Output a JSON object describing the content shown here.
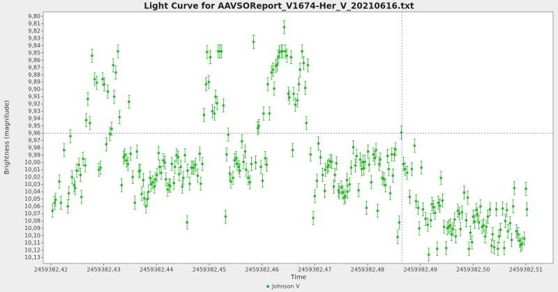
{
  "chart_data": {
    "type": "scatter",
    "title": "Light Curve for AAVSOReport_V1674-Her_V_20210616.txt",
    "x_label": "Time",
    "y_label": "Brightness (magnitude)",
    "xlim": [
      2459382.41855,
      2459382.51516
    ],
    "ylim": [
      10.138,
      9.794
    ],
    "xticks": [
      {
        "value": 2459382.42,
        "label": "2459382,42"
      },
      {
        "value": 2459382.43,
        "label": "2459382,43"
      },
      {
        "value": 2459382.44,
        "label": "2459382,44"
      },
      {
        "value": 2459382.45,
        "label": "2459382,45"
      },
      {
        "value": 2459382.46,
        "label": "2459382,46"
      },
      {
        "value": 2459382.47,
        "label": "2459382,47"
      },
      {
        "value": 2459382.48,
        "label": "2459382,48"
      },
      {
        "value": 2459382.49,
        "label": "2459382,49"
      },
      {
        "value": 2459382.5,
        "label": "2459382,50"
      },
      {
        "value": 2459382.51,
        "label": "2459382,51"
      }
    ],
    "yticks": [
      {
        "value": 9.8,
        "label": "9,80"
      },
      {
        "value": 9.81,
        "label": "9,81"
      },
      {
        "value": 9.82,
        "label": "9,82"
      },
      {
        "value": 9.83,
        "label": "9,83"
      },
      {
        "value": 9.84,
        "label": "9,84"
      },
      {
        "value": 9.85,
        "label": "9,85"
      },
      {
        "value": 9.86,
        "label": "9,86"
      },
      {
        "value": 9.87,
        "label": "9,87"
      },
      {
        "value": 9.88,
        "label": "9,88"
      },
      {
        "value": 9.89,
        "label": "9,89"
      },
      {
        "value": 9.9,
        "label": "9,90"
      },
      {
        "value": 9.91,
        "label": "9,91"
      },
      {
        "value": 9.92,
        "label": "9,92"
      },
      {
        "value": 9.93,
        "label": "9,93"
      },
      {
        "value": 9.94,
        "label": "9,94"
      },
      {
        "value": 9.95,
        "label": "9,95"
      },
      {
        "value": 9.96,
        "label": "9,96"
      },
      {
        "value": 9.97,
        "label": "9,97"
      },
      {
        "value": 9.98,
        "label": "9,98"
      },
      {
        "value": 9.99,
        "label": "9,99"
      },
      {
        "value": 10.0,
        "label": "10,00"
      },
      {
        "value": 10.01,
        "label": "10,01"
      },
      {
        "value": 10.02,
        "label": "10,02"
      },
      {
        "value": 10.03,
        "label": "10,03"
      },
      {
        "value": 10.04,
        "label": "10,04"
      },
      {
        "value": 10.05,
        "label": "10,05"
      },
      {
        "value": 10.06,
        "label": "10,06"
      },
      {
        "value": 10.07,
        "label": "10,07"
      },
      {
        "value": 10.08,
        "label": "10,08"
      },
      {
        "value": 10.09,
        "label": "10,09"
      },
      {
        "value": 10.1,
        "label": "10,10"
      },
      {
        "value": 10.11,
        "label": "10,11"
      },
      {
        "value": 10.12,
        "label": "10,12"
      },
      {
        "value": 10.13,
        "label": "10,13"
      }
    ],
    "crosshair": {
      "x": 2459382.4865,
      "y": 9.96,
      "color": "#8080ff"
    },
    "legend": "bottom",
    "x": [
      2459382.4203,
      2459382.4207,
      2459382.4209,
      2459382.4216,
      2459382.4219,
      2459382.4225,
      2459382.4232,
      2459382.4234,
      2459382.4237,
      2459382.424,
      2459382.4244,
      2459382.4246,
      2459382.4249,
      2459382.4253,
      2459382.4256,
      2459382.4258,
      2459382.4261,
      2459382.4265,
      2459382.4267,
      2459382.427,
      2459382.4274,
      2459382.4278,
      2459382.4283,
      2459382.4287,
      2459382.4291,
      2459382.4294,
      2459382.4298,
      2459382.4301,
      2459382.4305,
      2459382.4308,
      2459382.4312,
      2459382.4315,
      2459382.4318,
      2459382.432,
      2459382.4323,
      2459382.4327,
      2459382.433,
      2459382.4334,
      2459382.4338,
      2459382.434,
      2459382.4343,
      2459382.4346,
      2459382.4348,
      2459382.4351,
      2459382.4355,
      2459382.4359,
      2459382.4363,
      2459382.4367,
      2459382.4369,
      2459382.4372,
      2459382.4375,
      2459382.4377,
      2459382.438,
      2459382.4383,
      2459382.4385,
      2459382.4388,
      2459382.439,
      2459382.4393,
      2459382.4396,
      2459382.4398,
      2459382.4401,
      2459382.4404,
      2459382.4406,
      2459382.4409,
      2459382.4413,
      2459382.4416,
      2459382.4418,
      2459382.4421,
      2459382.4424,
      2459382.4426,
      2459382.4429,
      2459382.4433,
      2459382.4435,
      2459382.4438,
      2459382.4441,
      2459382.4443,
      2459382.4446,
      2459382.4449,
      2459382.4451,
      2459382.4454,
      2459382.4458,
      2459382.4459,
      2459382.4463,
      2459382.4466,
      2459382.4469,
      2459382.4471,
      2459382.4474,
      2459382.4478,
      2459382.4482,
      2459382.4484,
      2459382.4487,
      2459382.449,
      2459382.4494,
      2459382.4496,
      2459382.4499,
      2459382.4502,
      2459382.4506,
      2459382.451,
      2459382.4512,
      2459382.4515,
      2459382.4517,
      2459382.452,
      2459382.4523,
      2459382.4527,
      2459382.4531,
      2459382.4533,
      2459382.4536,
      2459382.4539,
      2459382.4541,
      2459382.4545,
      2459382.4548,
      2459382.4551,
      2459382.4553,
      2459382.4556,
      2459382.4558,
      2459382.4562,
      2459382.4565,
      2459382.4568,
      2459382.457,
      2459382.4574,
      2459382.4577,
      2459382.458,
      2459382.4584,
      2459382.4588,
      2459382.4592,
      2459382.4594,
      2459382.4598,
      2459382.4601,
      2459382.4603,
      2459382.4606,
      2459382.4609,
      2459382.4611,
      2459382.4614,
      2459382.4618,
      2459382.4621,
      2459382.4623,
      2459382.4626,
      2459382.4629,
      2459382.4631,
      2459382.4633,
      2459382.4637,
      2459382.4639,
      2459382.4642,
      2459382.4644,
      2459382.4647,
      2459382.465,
      2459382.4652,
      2459382.4655,
      2459382.4658,
      2459382.466,
      2459382.4663,
      2459382.4667,
      2459382.467,
      2459382.4672,
      2459382.4676,
      2459382.4679,
      2459382.4682,
      2459382.4684,
      2459382.4687,
      2459382.4692,
      2459382.4697,
      2459382.47,
      2459382.4704,
      2459382.4707,
      2459382.4711,
      2459382.4715,
      2459382.4719,
      2459382.472,
      2459382.4724,
      2459382.4726,
      2459382.4729,
      2459382.4732,
      2459382.4736,
      2459382.4738,
      2459382.4741,
      2459382.4745,
      2459382.4746,
      2459382.475,
      2459382.4753,
      2459382.4756,
      2459382.4758,
      2459382.4761,
      2459382.4762,
      2459382.4766,
      2459382.4769,
      2459382.4773,
      2459382.4777,
      2459382.4779,
      2459382.4783,
      2459382.4786,
      2459382.4789,
      2459382.4791,
      2459382.4793,
      2459382.4795,
      2459382.4798,
      2459382.4801,
      2459382.4803,
      2459382.4807,
      2459382.4811,
      2459382.4814,
      2459382.4816,
      2459382.4819,
      2459382.4822,
      2459382.4824,
      2459382.4828,
      2459382.4831,
      2459382.4834,
      2459382.4838,
      2459382.484,
      2459382.4843,
      2459382.4846,
      2459382.4848,
      2459382.4851,
      2459382.4853,
      2459382.4857,
      2459382.486,
      2459382.4864,
      2459382.4868,
      2459382.4871,
      2459382.4875,
      2459382.488,
      2459382.4884,
      2459382.4889,
      2459382.4892,
      2459382.4896,
      2459382.4898,
      2459382.4902,
      2459382.4905,
      2459382.491,
      2459382.4914,
      2459382.4916,
      2459382.492,
      2459382.4922,
      2459382.4925,
      2459382.4928,
      2459382.4932,
      2459382.4934,
      2459382.4937,
      2459382.4939,
      2459382.4942,
      2459382.4945,
      2459382.4949,
      2459382.4951,
      2459382.4954,
      2459382.4957,
      2459382.4959,
      2459382.4962,
      2459382.4965,
      2459382.4967,
      2459382.4971,
      2459382.4974,
      2459382.4976,
      2459382.4979,
      2459382.4983,
      2459382.4987,
      2459382.499,
      2459382.4992,
      2459382.4995,
      2459382.4998,
      2459382.5,
      2459382.5003,
      2459382.5006,
      2459382.5008,
      2459382.5011,
      2459382.5014,
      2459382.5017,
      2459382.502,
      2459382.5023,
      2459382.5025,
      2459382.5028,
      2459382.5032,
      2459382.5035,
      2459382.5037,
      2459382.504,
      2459382.5044,
      2459382.5047,
      2459382.5049,
      2459382.5052,
      2459382.5056,
      2459382.5059,
      2459382.5061,
      2459382.5064,
      2459382.5066,
      2459382.507,
      2459382.5073,
      2459382.5076,
      2459382.5078,
      2459382.5082,
      2459382.5085,
      2459382.5088,
      2459382.509,
      2459382.5093,
      2459382.5097,
      2459382.51,
      2459382.5102
    ],
    "series": [
      {
        "name": "Johnson V",
        "color": "#22bb22",
        "error": 0.009,
        "values": [
          10.066,
          10.055,
          10.051,
          10.026,
          10.055,
          9.983,
          10.06,
          10.042,
          9.964,
          10.02,
          10.031,
          10.035,
          10.011,
          10.003,
          10.017,
          10.047,
          9.995,
          10.004,
          9.942,
          9.913,
          9.946,
          9.854,
          9.886,
          9.891,
          10.01,
          10.007,
          9.886,
          9.893,
          9.975,
          9.903,
          9.961,
          9.954,
          9.867,
          9.91,
          9.877,
          9.848,
          9.938,
          10.031,
          9.993,
          9.99,
          9.997,
          10.002,
          9.917,
          9.988,
          10.02,
          10.055,
          9.985,
          10.012,
          10.011,
          10.043,
          10.024,
          10.049,
          10.06,
          10.05,
          10.04,
          10.021,
          10.03,
          10.027,
          10.033,
          10.023,
          10.017,
          9.987,
          10.006,
          10.014,
          9.997,
          10.0,
          10.023,
          10.037,
          10.031,
          10.032,
          10.002,
          10.028,
          10.006,
          9.99,
          9.993,
          10.016,
          10.006,
          10.033,
          10.021,
          9.99,
          10.082,
          10.011,
          10.029,
          10.007,
          10.007,
          10.007,
          10.003,
          10.018,
          9.988,
          10.029,
          10.002,
          9.935,
          9.893,
          9.849,
          9.89,
          9.856,
          9.93,
          9.933,
          9.91,
          9.919,
          9.848,
          9.848,
          9.848,
          9.922,
          10.074,
          9.989,
          9.962,
          10.015,
          10.026,
          10.021,
          9.997,
          9.994,
          10.002,
          10.006,
          10.011,
          9.971,
          9.999,
          9.985,
          10.01,
          10.021,
          10.027,
          10.002,
          9.835,
          10.0,
          9.953,
          9.95,
          10.006,
          10.025,
          9.933,
          9.994,
          10.003,
          9.893,
          9.933,
          9.877,
          9.873,
          9.899,
          9.868,
          9.866,
          9.855,
          9.849,
          9.848,
          9.848,
          9.815,
          9.848,
          9.854,
          9.906,
          9.911,
          9.856,
          9.983,
          9.906,
          9.921,
          9.915,
          9.893,
          9.873,
          9.848,
          9.864,
          9.898,
          9.946,
          9.867,
          9.989,
          10.076,
          10.046,
          10.025,
          9.974,
          9.993,
          10.017,
          10.039,
          10.01,
          10.006,
          10.004,
          9.998,
          9.999,
          10.033,
          10.017,
          10.001,
          10.038,
          10.041,
          10.034,
          10.041,
          10.048,
          10.046,
          10.024,
          10.04,
          10.03,
          10.007,
          9.979,
          10.004,
          9.991,
          10.038,
          9.996,
          10.009,
          9.999,
          10.008,
          9.999,
          10.062,
          9.985,
          10.003,
          10.027,
          9.989,
          9.994,
          9.983,
          10.066,
          10.002,
          9.996,
          10.021,
          10.023,
          10.031,
          9.991,
          10.009,
          10.042,
          9.989,
          10.018,
          9.989,
          9.982,
          10.102,
          10.082,
          9.959,
          10.002,
          10.009,
          10.014,
          10.047,
          10.009,
          9.977,
          10.053,
          10.062,
          10.09,
          10.007,
          10.064,
          10.077,
          10.085,
          10.126,
          10.079,
          10.057,
          10.061,
          10.069,
          10.118,
          10.055,
          10.059,
          10.021,
          10.052,
          10.088,
          10.117,
          10.09,
          10.088,
          10.086,
          10.098,
          10.091,
          10.078,
          10.101,
          10.066,
          10.07,
          10.091,
          10.068,
          10.041,
          10.079,
          10.048,
          10.118,
          10.096,
          10.109,
          10.074,
          10.081,
          10.065,
          10.071,
          10.082,
          10.06,
          10.088,
          10.086,
          10.101,
          10.088,
          10.074,
          10.064,
          10.114,
          10.098,
          10.116,
          10.064,
          10.118,
          10.101,
          10.092,
          10.063,
          10.117,
          10.08,
          10.065,
          10.094,
          10.083,
          10.106,
          10.06,
          10.035,
          10.094,
          10.098,
          10.107,
          10.113,
          10.111,
          10.104,
          10.036,
          10.064
        ]
      }
    ]
  }
}
